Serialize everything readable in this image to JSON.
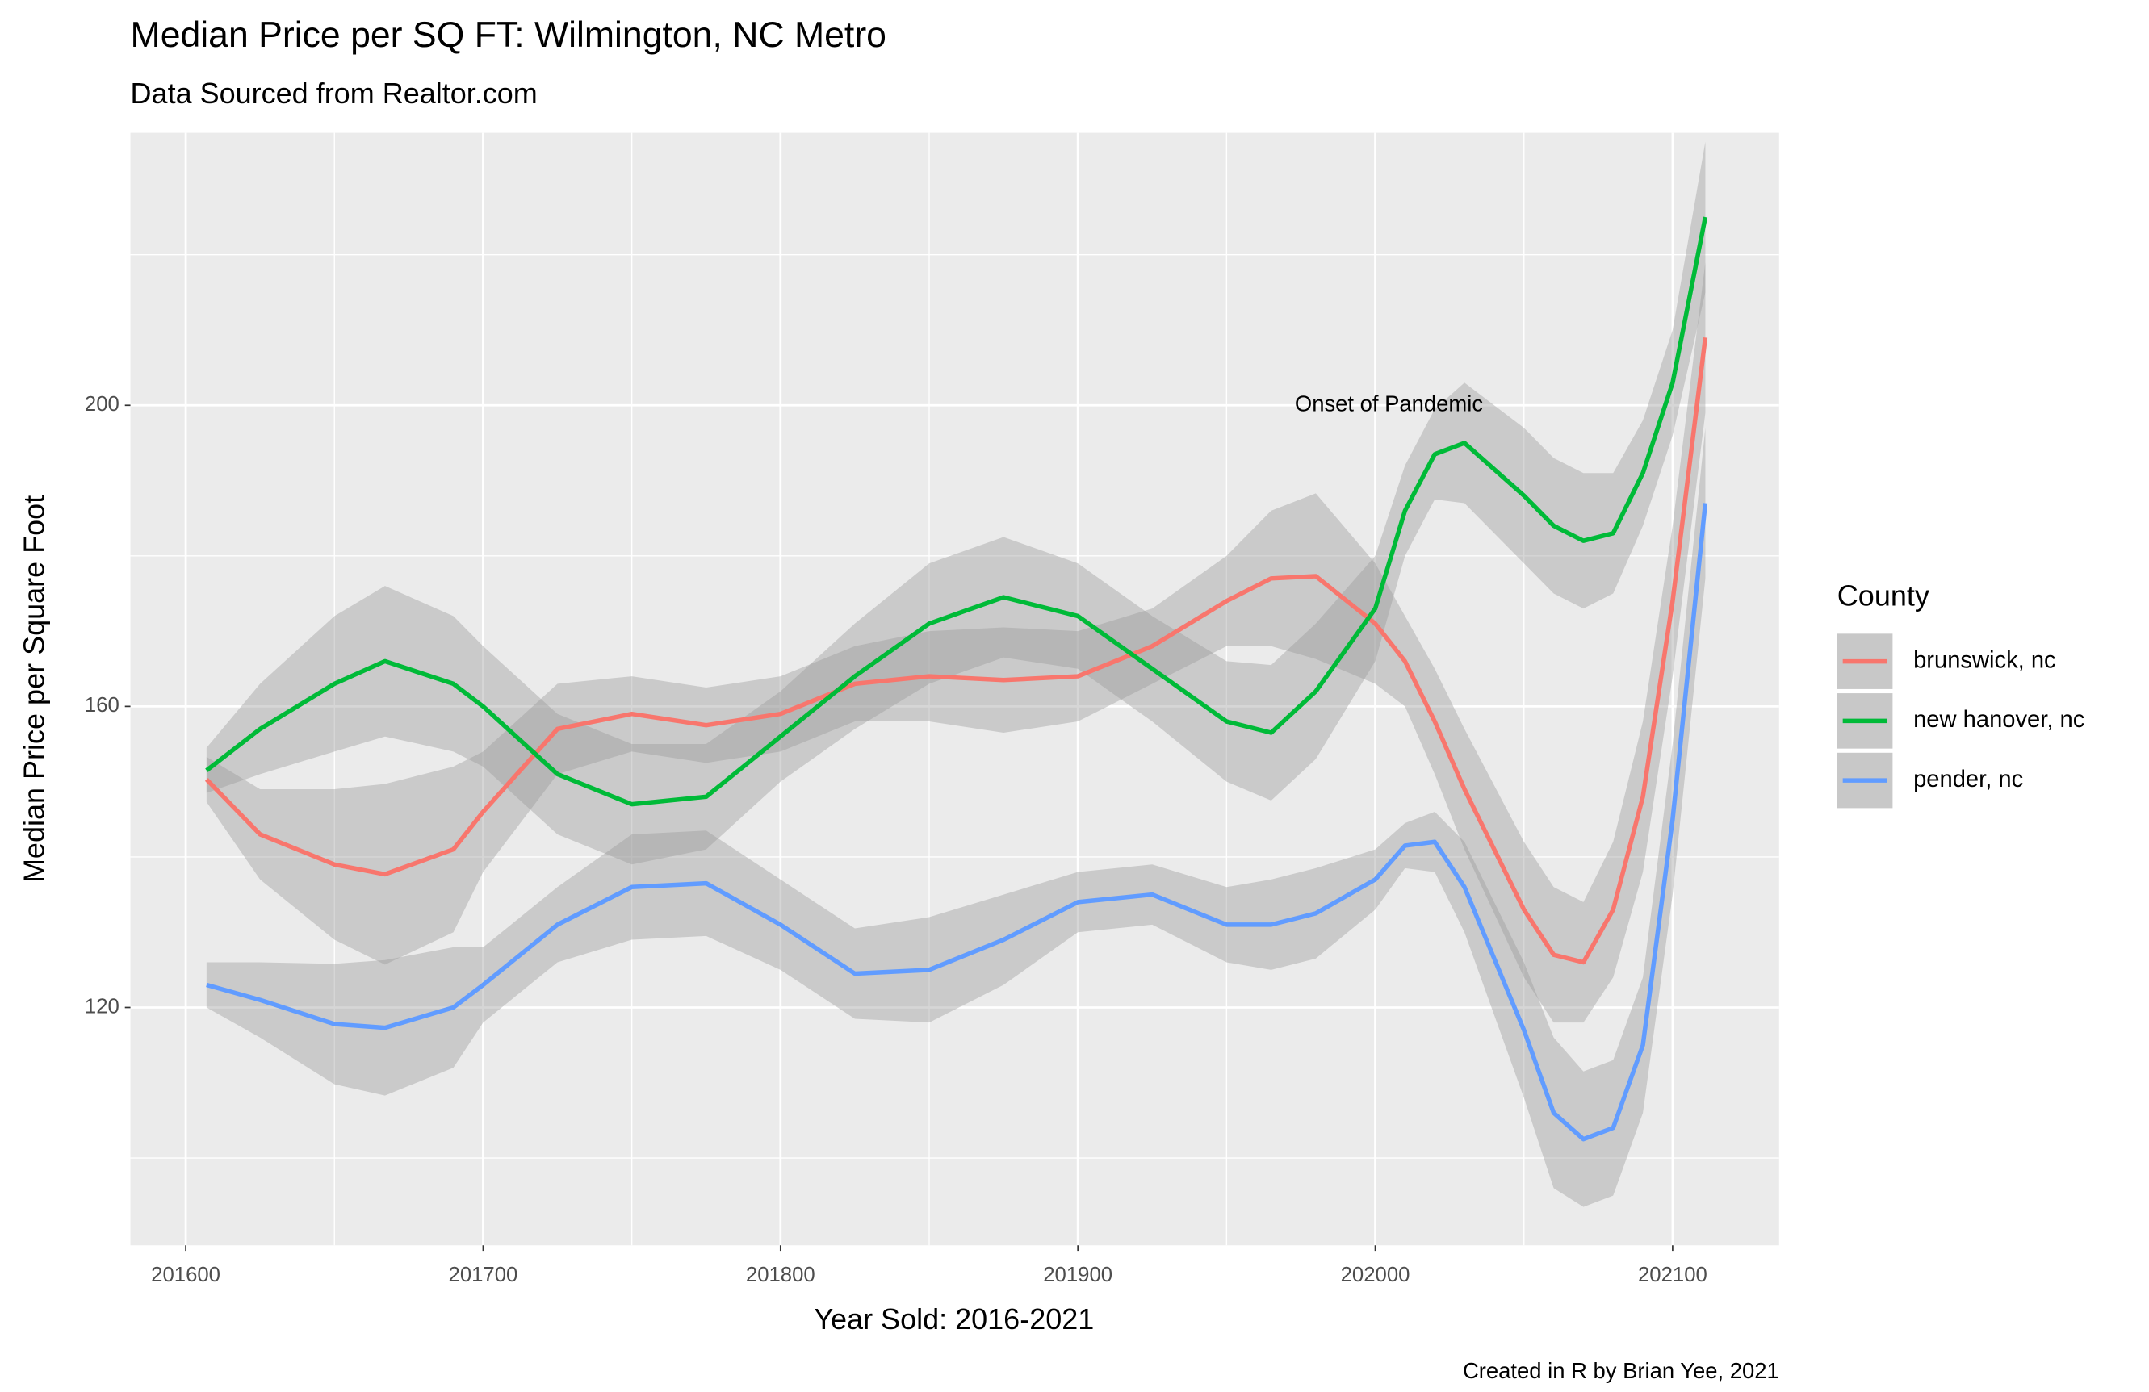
{
  "chart_data": {
    "type": "line",
    "title": "Median Price per SQ FT: Wilmington, NC Metro",
    "subtitle": "Data Sourced from Realtor.com",
    "x_label": "Year Sold: 2016-2021",
    "y_label": "Median Price per Square Foot",
    "caption": "Created in R by Brian Yee, 2021",
    "legend_title": "County",
    "legend_position": "right",
    "annotation": {
      "text": "Onset of Pandemic",
      "x": 202004.6,
      "y": 200
    },
    "x": [
      201607,
      201625,
      201650,
      201667,
      201690,
      201700,
      201725,
      201750,
      201775,
      201800,
      201825,
      201850,
      201875,
      201900,
      201925,
      201950,
      201965,
      201980,
      202000,
      202010,
      202020,
      202030,
      202050,
      202060,
      202070,
      202080,
      202090,
      202100,
      202111
    ],
    "series": [
      {
        "name": "brunswick, nc",
        "color": "#F8766D",
        "values": [
          150.3,
          143,
          139,
          137.7,
          141,
          146,
          157,
          159,
          157.5,
          159,
          163,
          164,
          163.5,
          164,
          168,
          174,
          177,
          177.3,
          171,
          166,
          158,
          149,
          133,
          127,
          126,
          133,
          148,
          174,
          209
        ],
        "ci_halfwidth": [
          3,
          6,
          10,
          12,
          11,
          8,
          6,
          5,
          5,
          5,
          5,
          6,
          7,
          6,
          5,
          6,
          9,
          11,
          8,
          6,
          7,
          8,
          9,
          9,
          8,
          9,
          10,
          10,
          10
        ]
      },
      {
        "name": "new hanover, nc",
        "color": "#00BA38",
        "values": [
          151.5,
          157,
          163,
          166,
          163,
          160,
          151,
          147,
          148,
          156,
          164,
          171,
          174.5,
          172,
          165,
          158,
          156.5,
          162,
          173,
          186,
          193.5,
          195,
          188,
          184,
          182,
          183,
          191,
          203,
          225
        ],
        "ci_halfwidth": [
          3,
          6,
          9,
          10,
          9,
          8,
          8,
          8,
          7,
          6,
          7,
          8,
          8,
          7,
          7,
          8,
          9,
          9,
          7,
          6,
          6,
          8,
          9,
          9,
          9,
          8,
          7,
          7,
          10
        ]
      },
      {
        "name": "pender, nc",
        "color": "#619CFF",
        "values": [
          123,
          121,
          117.8,
          117.3,
          120,
          123,
          131,
          136,
          136.5,
          131,
          124.5,
          125,
          129,
          134,
          135,
          131,
          131,
          132.5,
          137,
          141.5,
          142,
          136,
          117,
          106,
          102.5,
          104,
          115,
          145,
          187
        ],
        "ci_halfwidth": [
          3,
          5,
          8,
          9,
          8,
          5,
          5,
          7,
          7,
          6,
          6,
          7,
          6,
          4,
          4,
          5,
          6,
          6,
          4,
          3,
          4,
          6,
          9,
          10,
          9,
          9,
          9,
          10,
          10
        ]
      }
    ],
    "xlim": [
      201581.4,
      202135.8
    ],
    "ylim": [
      88.4,
      236.2
    ],
    "xticks": [
      201600,
      201700,
      201800,
      201900,
      202000,
      202100
    ],
    "xticks_minor": [
      201650,
      201750,
      201850,
      201950,
      202050
    ],
    "yticks": [
      120,
      160,
      200
    ],
    "yticks_minor": [
      100,
      140,
      180,
      220
    ],
    "grid": true
  }
}
